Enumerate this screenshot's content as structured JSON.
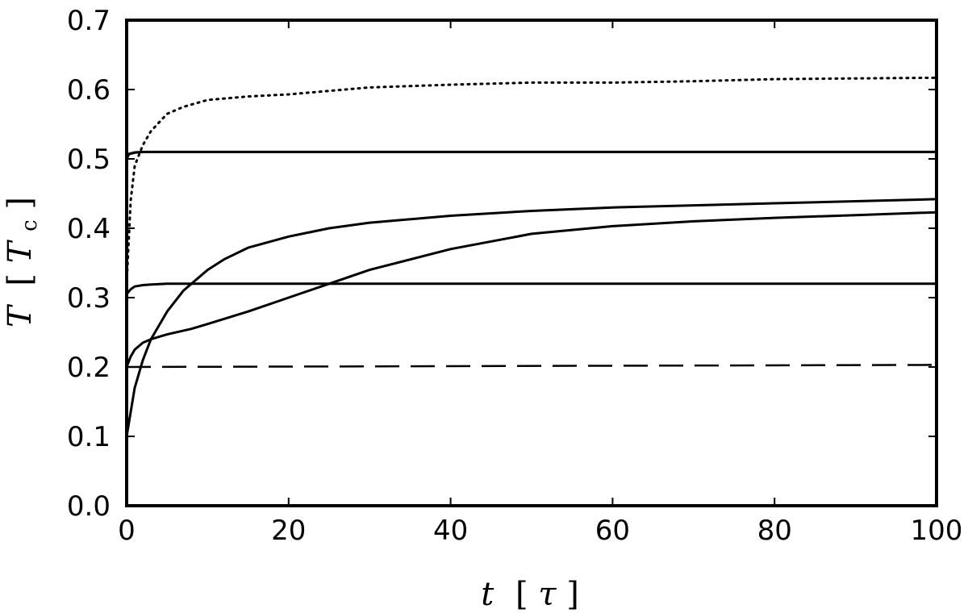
{
  "chart_data": {
    "type": "line",
    "title": "",
    "xlabel": "t [τ]",
    "ylabel": "T [Tc]",
    "xlabel_parts": {
      "var": "t",
      "open": "[",
      "unit": "τ",
      "close": "]"
    },
    "ylabel_parts": {
      "var": "T",
      "open": "[",
      "unit": "T",
      "sub": "c",
      "close": "]"
    },
    "xlim": [
      0,
      100
    ],
    "ylim": [
      0,
      0.7
    ],
    "grid": false,
    "legend": "none",
    "xticks": [
      0,
      20,
      40,
      60,
      80,
      100
    ],
    "xtick_labels": [
      "0",
      "20",
      "40",
      "60",
      "80",
      "100"
    ],
    "yticks": [
      0.0,
      0.1,
      0.2,
      0.3,
      0.4,
      0.5,
      0.6,
      0.7
    ],
    "ytick_labels": [
      "0.0",
      "0.1",
      "0.2",
      "0.3",
      "0.4",
      "0.5",
      "0.6",
      "0.7"
    ],
    "series": [
      {
        "style": "dotted",
        "color": "#000000",
        "x": [
          0,
          0.5,
          1,
          2,
          3,
          5,
          7,
          10,
          15,
          20,
          30,
          40,
          50,
          60,
          70,
          80,
          90,
          100
        ],
        "y": [
          0.32,
          0.44,
          0.49,
          0.52,
          0.54,
          0.565,
          0.575,
          0.585,
          0.59,
          0.593,
          0.603,
          0.607,
          0.61,
          0.61,
          0.612,
          0.615,
          0.616,
          0.617
        ]
      },
      {
        "style": "solid",
        "color": "#999999",
        "x": [
          0,
          0.3,
          1,
          2,
          5,
          10,
          20,
          40,
          60,
          80,
          100
        ],
        "y": [
          0.502,
          0.508,
          0.51,
          0.51,
          0.51,
          0.51,
          0.51,
          0.51,
          0.51,
          0.51,
          0.51
        ]
      },
      {
        "style": "solid",
        "color": "#000000",
        "x": [
          0,
          0.3,
          1,
          2,
          5,
          10,
          20,
          40,
          60,
          80,
          100
        ],
        "y": [
          0.5,
          0.507,
          0.509,
          0.51,
          0.51,
          0.51,
          0.51,
          0.51,
          0.51,
          0.51,
          0.51
        ]
      },
      {
        "style": "solid",
        "color": "#000000",
        "x": [
          0,
          1,
          2,
          3,
          5,
          7,
          10,
          12,
          15,
          20,
          25,
          30,
          40,
          50,
          60,
          70,
          80,
          90,
          100
        ],
        "y": [
          0.1,
          0.17,
          0.21,
          0.24,
          0.28,
          0.31,
          0.34,
          0.355,
          0.372,
          0.388,
          0.4,
          0.408,
          0.418,
          0.425,
          0.43,
          0.433,
          0.436,
          0.439,
          0.442
        ]
      },
      {
        "style": "solid",
        "color": "#000000",
        "x": [
          0,
          0.5,
          1,
          2,
          3,
          5,
          8,
          10,
          15,
          20,
          25,
          30,
          40,
          50,
          60,
          70,
          80,
          90,
          100
        ],
        "y": [
          0.2,
          0.215,
          0.225,
          0.235,
          0.24,
          0.247,
          0.255,
          0.262,
          0.28,
          0.3,
          0.32,
          0.34,
          0.37,
          0.392,
          0.403,
          0.41,
          0.415,
          0.419,
          0.423
        ]
      },
      {
        "style": "solid",
        "color": "#000000",
        "x": [
          0,
          0.5,
          1,
          2,
          3,
          5,
          10,
          20,
          40,
          60,
          80,
          100
        ],
        "y": [
          0.305,
          0.312,
          0.316,
          0.318,
          0.319,
          0.32,
          0.32,
          0.32,
          0.32,
          0.32,
          0.32,
          0.32
        ]
      },
      {
        "style": "dashed",
        "color": "#000000",
        "x": [
          0,
          100
        ],
        "y": [
          0.2,
          0.203
        ]
      }
    ]
  }
}
